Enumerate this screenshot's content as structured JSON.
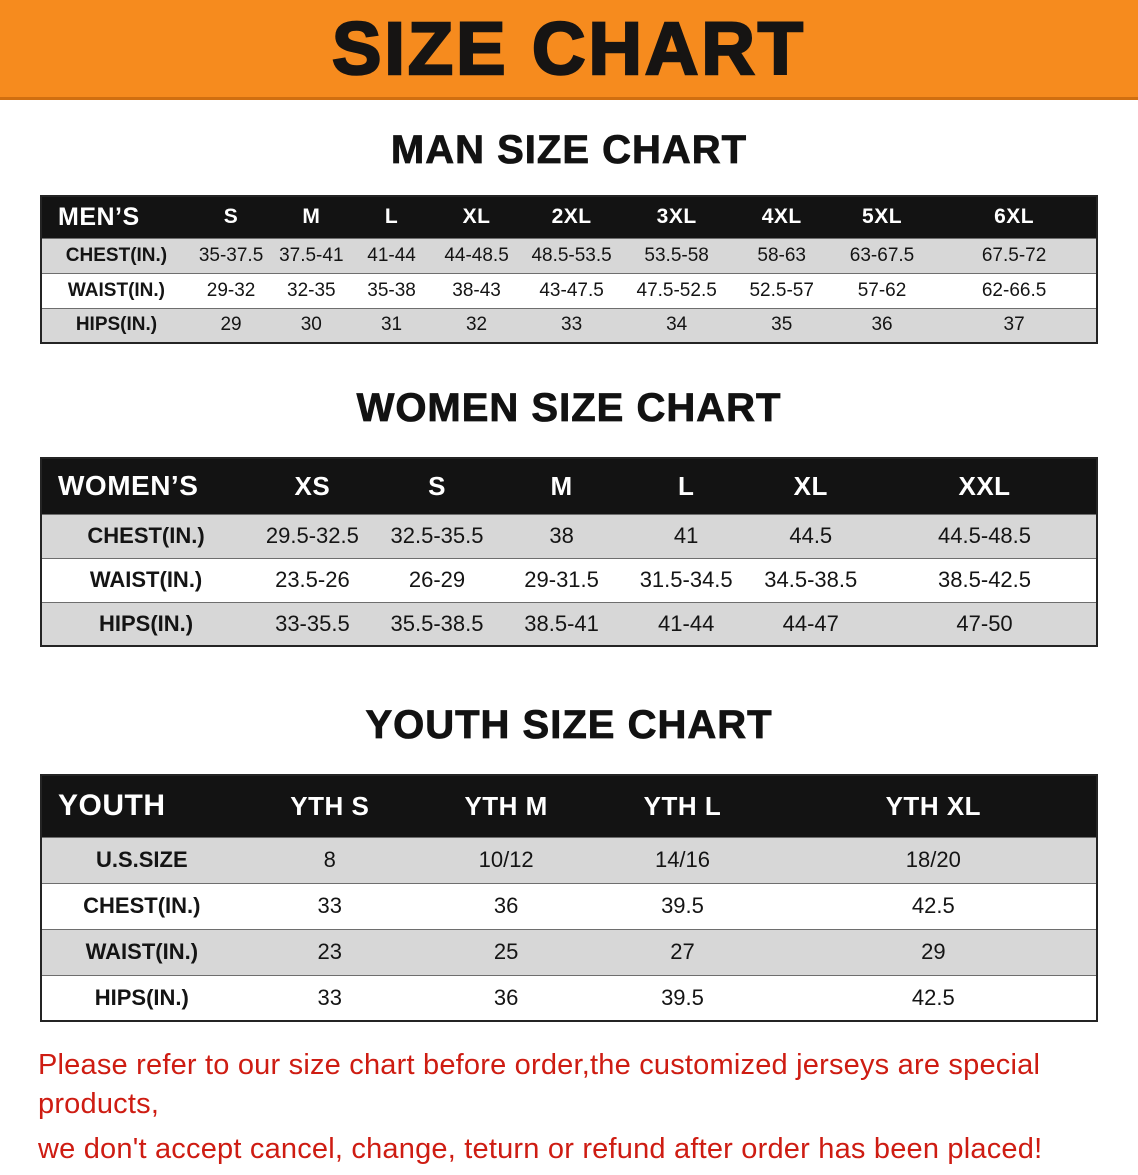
{
  "banner": {
    "title": "SIZE CHART"
  },
  "colors": {
    "banner_bg": "#f68b1e",
    "table_header_bg": "#131313",
    "row_shaded": "#d7d7d7",
    "notice_text": "#ce1c12"
  },
  "chart_data": [
    {
      "type": "table",
      "title": "MAN SIZE CHART",
      "columns": [
        "MEN’S",
        "S",
        "M",
        "L",
        "XL",
        "2XL",
        "3XL",
        "4XL",
        "5XL",
        "6XL"
      ],
      "rows": [
        [
          "CHEST(IN.)",
          "35-37.5",
          "37.5-41",
          "41-44",
          "44-48.5",
          "48.5-53.5",
          "53.5-58",
          "58-63",
          "63-67.5",
          "67.5-72"
        ],
        [
          "WAIST(IN.)",
          "29-32",
          "32-35",
          "35-38",
          "38-43",
          "43-47.5",
          "47.5-52.5",
          "52.5-57",
          "57-62",
          "62-66.5"
        ],
        [
          "HIPS(IN.)",
          "29",
          "30",
          "31",
          "32",
          "33",
          "34",
          "35",
          "36",
          "37"
        ]
      ]
    },
    {
      "type": "table",
      "title": "WOMEN SIZE CHART",
      "columns": [
        "WOMEN’S",
        "XS",
        "S",
        "M",
        "L",
        "XL",
        "XXL"
      ],
      "rows": [
        [
          "CHEST(IN.)",
          "29.5-32.5",
          "32.5-35.5",
          "38",
          "41",
          "44.5",
          "44.5-48.5"
        ],
        [
          "WAIST(IN.)",
          "23.5-26",
          "26-29",
          "29-31.5",
          "31.5-34.5",
          "34.5-38.5",
          "38.5-42.5"
        ],
        [
          "HIPS(IN.)",
          "33-35.5",
          "35.5-38.5",
          "38.5-41",
          "41-44",
          "44-47",
          "47-50"
        ]
      ]
    },
    {
      "type": "table",
      "title": "YOUTH SIZE CHART",
      "columns": [
        "YOUTH",
        "YTH S",
        "YTH M",
        "YTH L",
        "YTH XL"
      ],
      "rows": [
        [
          "U.S.SIZE",
          "8",
          "10/12",
          "14/16",
          "18/20"
        ],
        [
          "CHEST(IN.)",
          "33",
          "36",
          "39.5",
          "42.5"
        ],
        [
          "WAIST(IN.)",
          "23",
          "25",
          "27",
          "29"
        ],
        [
          "HIPS(IN.)",
          "33",
          "36",
          "39.5",
          "42.5"
        ]
      ]
    }
  ],
  "footer": {
    "line1": "Please refer to our size chart before order,the customized jerseys are special products,",
    "line2": "we don't accept cancel, change, teturn or refund after order has been placed!"
  }
}
